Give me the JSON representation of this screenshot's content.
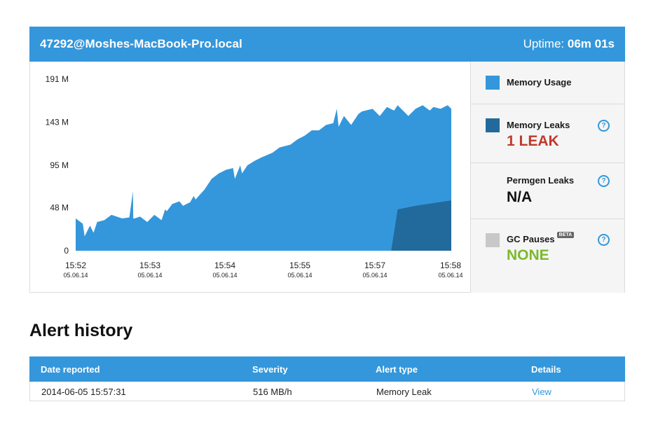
{
  "header": {
    "host": "47292@Moshes-MacBook-Pro.local",
    "uptime_label": "Uptime:",
    "uptime_value": "06m 01s"
  },
  "chart_data": {
    "type": "area",
    "y_ticks": [
      "191 M",
      "143 M",
      "95 M",
      "48 M",
      "0"
    ],
    "ylim": [
      0,
      191
    ],
    "x_ticks": [
      {
        "time": "15:52",
        "date": "05.06.14"
      },
      {
        "time": "15:53",
        "date": "05.06.14"
      },
      {
        "time": "15:54",
        "date": "05.06.14"
      },
      {
        "time": "15:55",
        "date": "05.06.14"
      },
      {
        "time": "15:57",
        "date": "05.06.14"
      },
      {
        "time": "15:58",
        "date": "05.06.14"
      }
    ],
    "series": [
      {
        "name": "Memory Usage",
        "color": "#3497db",
        "x": [
          0,
          0.2,
          0.25,
          0.4,
          0.5,
          0.6,
          0.8,
          1.0,
          1.3,
          1.5,
          1.6,
          1.61,
          1.65,
          1.8,
          2.0,
          2.2,
          2.4,
          2.5,
          2.55,
          2.7,
          2.9,
          3.0,
          3.2,
          3.3,
          3.35,
          3.6,
          3.8,
          4.0,
          4.2,
          4.4,
          4.45,
          4.6,
          4.65,
          4.8,
          5.0,
          5.2,
          5.5,
          5.7,
          6.0,
          6.2,
          6.4,
          6.6,
          6.8,
          7.0,
          7.2,
          7.3,
          7.35,
          7.5,
          7.7,
          7.9,
          8.0,
          8.3,
          8.5,
          8.7,
          8.9,
          9.0,
          9.3,
          9.5,
          9.7,
          9.9,
          10.0,
          10.2,
          10.4,
          10.5
        ],
        "values": [
          36,
          30,
          16,
          28,
          20,
          32,
          34,
          40,
          36,
          37,
          66,
          36,
          36,
          38,
          32,
          40,
          34,
          46,
          44,
          52,
          55,
          50,
          54,
          61,
          57,
          68,
          80,
          86,
          90,
          92,
          80,
          95,
          86,
          95,
          100,
          104,
          109,
          115,
          118,
          124,
          128,
          134,
          134,
          140,
          142,
          158,
          138,
          150,
          140,
          152,
          155,
          158,
          150,
          160,
          156,
          162,
          150,
          158,
          162,
          156,
          160,
          158,
          162,
          158
        ]
      },
      {
        "name": "Memory Leaks",
        "color": "#226a9c",
        "x": [
          8.82,
          9.0,
          9.5,
          10.0,
          10.5
        ],
        "values": [
          0,
          46,
          50,
          53,
          56
        ]
      }
    ],
    "xlim": [
      0,
      10.5
    ]
  },
  "legend": {
    "usage_label": "Memory Usage",
    "leaks_label": "Memory Leaks",
    "leaks_value": "1 LEAK",
    "leaks_color": "#c0392b",
    "permgen_label": "Permgen Leaks",
    "permgen_value": "N/A",
    "gc_label": "GC Pauses",
    "gc_badge": "BETA",
    "gc_value": "NONE",
    "gc_color": "#7cb92c",
    "help_glyph": "?"
  },
  "alerts": {
    "title": "Alert history",
    "columns": [
      "Date reported",
      "Severity",
      "Alert type",
      "Details"
    ],
    "rows": [
      {
        "date": "2014-06-05 15:57:31",
        "severity": "516 MB/h",
        "type": "Memory Leak",
        "details": "View"
      }
    ]
  }
}
